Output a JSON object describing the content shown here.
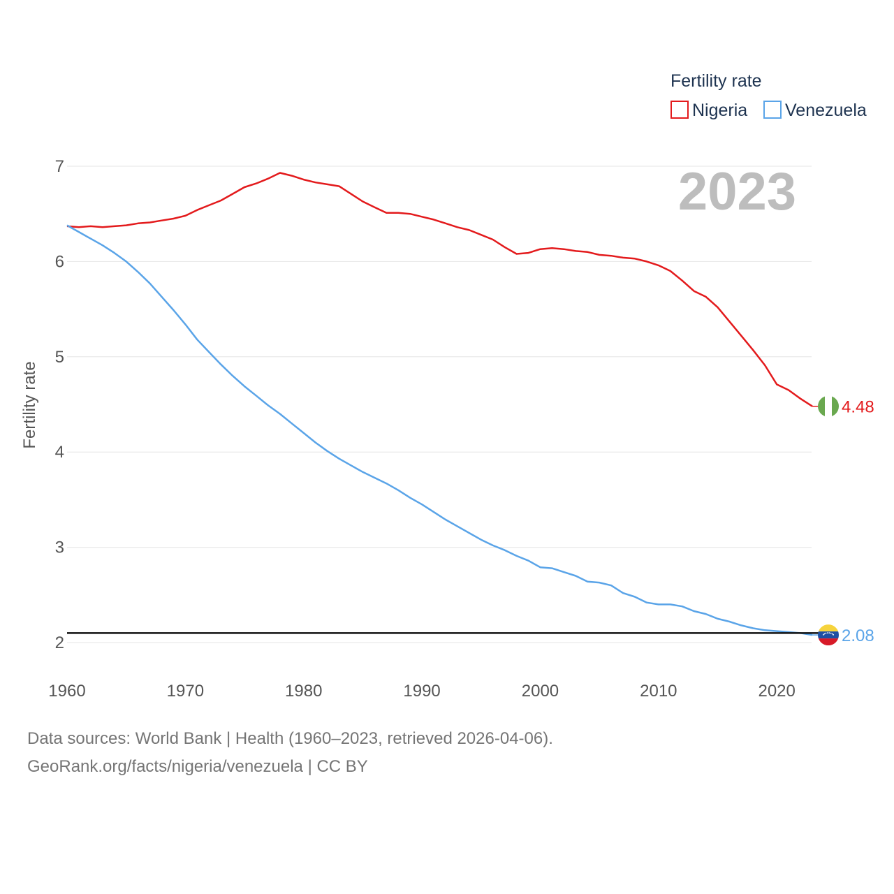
{
  "chart_data": {
    "type": "line",
    "title": "",
    "xlabel": "",
    "ylabel": "Fertility rate",
    "xlim": [
      1960,
      2023
    ],
    "ylim": [
      1.9,
      7.0
    ],
    "x_ticks": [
      "1960",
      "1970",
      "1980",
      "1990",
      "2000",
      "2010",
      "2020"
    ],
    "y_ticks": [
      "2",
      "3",
      "4",
      "5",
      "6",
      "7"
    ],
    "year_label": "2023",
    "legend": {
      "title": "Fertility rate",
      "position": "top-right",
      "entries": [
        "Nigeria",
        "Venezuela"
      ]
    },
    "reference_line": {
      "y": 2.1
    },
    "x": [
      1960,
      1961,
      1962,
      1963,
      1964,
      1965,
      1966,
      1967,
      1968,
      1969,
      1970,
      1971,
      1972,
      1973,
      1974,
      1975,
      1976,
      1977,
      1978,
      1979,
      1980,
      1981,
      1982,
      1983,
      1984,
      1985,
      1986,
      1987,
      1988,
      1989,
      1990,
      1991,
      1992,
      1993,
      1994,
      1995,
      1996,
      1997,
      1998,
      1999,
      2000,
      2001,
      2002,
      2003,
      2004,
      2005,
      2006,
      2007,
      2008,
      2009,
      2010,
      2011,
      2012,
      2013,
      2014,
      2015,
      2016,
      2017,
      2018,
      2019,
      2020,
      2021,
      2022,
      2023
    ],
    "series": [
      {
        "name": "Nigeria",
        "color": "#e31a1c",
        "end_label": "4.48",
        "values": [
          6.37,
          6.36,
          6.37,
          6.36,
          6.37,
          6.38,
          6.4,
          6.41,
          6.43,
          6.45,
          6.48,
          6.54,
          6.59,
          6.64,
          6.71,
          6.78,
          6.82,
          6.87,
          6.93,
          6.9,
          6.86,
          6.83,
          6.81,
          6.79,
          6.71,
          6.63,
          6.57,
          6.51,
          6.51,
          6.5,
          6.47,
          6.44,
          6.4,
          6.36,
          6.33,
          6.28,
          6.23,
          6.15,
          6.08,
          6.09,
          6.13,
          6.14,
          6.13,
          6.11,
          6.1,
          6.07,
          6.06,
          6.04,
          6.03,
          6.0,
          5.96,
          5.9,
          5.8,
          5.69,
          5.63,
          5.52,
          5.37,
          5.22,
          5.07,
          4.91,
          4.71,
          4.65,
          4.56,
          4.48
        ]
      },
      {
        "name": "Venezuela",
        "color": "#5aa4e8",
        "end_label": "2.08",
        "values": [
          6.38,
          6.31,
          6.24,
          6.17,
          6.09,
          6.0,
          5.89,
          5.77,
          5.63,
          5.49,
          5.34,
          5.18,
          5.05,
          4.92,
          4.8,
          4.69,
          4.59,
          4.49,
          4.4,
          4.3,
          4.2,
          4.1,
          4.01,
          3.93,
          3.86,
          3.79,
          3.73,
          3.67,
          3.6,
          3.52,
          3.45,
          3.37,
          3.29,
          3.22,
          3.15,
          3.08,
          3.02,
          2.97,
          2.91,
          2.86,
          2.79,
          2.78,
          2.74,
          2.7,
          2.64,
          2.63,
          2.6,
          2.52,
          2.48,
          2.42,
          2.4,
          2.4,
          2.38,
          2.33,
          2.3,
          2.25,
          2.22,
          2.18,
          2.15,
          2.13,
          2.12,
          2.11,
          2.1,
          2.08
        ]
      }
    ]
  },
  "footer": {
    "source_line": "Data sources: World Bank | Health (1960–2023, retrieved 2026-04-06).",
    "credit_line": "GeoRank.org/facts/nigeria/venezuela | CC BY"
  }
}
